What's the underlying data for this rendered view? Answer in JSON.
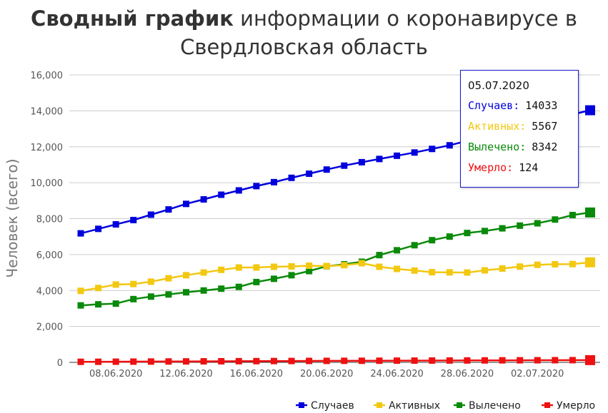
{
  "title": {
    "bold": "Сводный график",
    "rest_line1": " информации о коронавирусе в",
    "line2": "Свердловская область"
  },
  "chart_data": {
    "type": "line",
    "ylabel": "Человек (всего)",
    "xlabel": "",
    "ylim": [
      0,
      16000
    ],
    "yticks": [
      0,
      2000,
      4000,
      6000,
      8000,
      10000,
      12000,
      14000,
      16000
    ],
    "ytick_labels": [
      "0",
      "2,000",
      "4,000",
      "6,000",
      "8,000",
      "10,000",
      "12,000",
      "14,000",
      "16,000"
    ],
    "x": [
      "06.06.2020",
      "07.06.2020",
      "08.06.2020",
      "09.06.2020",
      "10.06.2020",
      "11.06.2020",
      "12.06.2020",
      "13.06.2020",
      "14.06.2020",
      "15.06.2020",
      "16.06.2020",
      "17.06.2020",
      "18.06.2020",
      "19.06.2020",
      "20.06.2020",
      "21.06.2020",
      "22.06.2020",
      "23.06.2020",
      "24.06.2020",
      "25.06.2020",
      "26.06.2020",
      "27.06.2020",
      "28.06.2020",
      "29.06.2020",
      "30.06.2020",
      "01.07.2020",
      "02.07.2020",
      "03.07.2020",
      "04.07.2020",
      "05.07.2020"
    ],
    "xtick_labels": [
      "08.06.2020",
      "12.06.2020",
      "16.06.2020",
      "20.06.2020",
      "24.06.2020",
      "28.06.2020",
      "02.07.2020"
    ],
    "grid": true,
    "legend_position": "bottom-right",
    "series": [
      {
        "name": "Случаев",
        "color": "#0000dd",
        "values": [
          7180,
          7430,
          7680,
          7920,
          8220,
          8510,
          8820,
          9070,
          9330,
          9570,
          9810,
          10030,
          10270,
          10500,
          10730,
          10950,
          11140,
          11320,
          11500,
          11680,
          11880,
          12080,
          12330,
          12580,
          12860,
          13080,
          13300,
          13550,
          13800,
          14033
        ]
      },
      {
        "name": "Активных",
        "color": "#f2c811",
        "values": [
          3980,
          4140,
          4330,
          4360,
          4490,
          4680,
          4850,
          5000,
          5150,
          5280,
          5280,
          5320,
          5340,
          5380,
          5360,
          5410,
          5520,
          5320,
          5200,
          5110,
          5020,
          5010,
          5000,
          5120,
          5220,
          5330,
          5430,
          5460,
          5470,
          5567
        ]
      },
      {
        "name": "Вылечено",
        "color": "#0a8a0a",
        "values": [
          3170,
          3230,
          3270,
          3520,
          3660,
          3780,
          3900,
          4000,
          4100,
          4200,
          4470,
          4650,
          4850,
          5080,
          5350,
          5460,
          5600,
          5970,
          6240,
          6520,
          6800,
          7000,
          7200,
          7310,
          7460,
          7610,
          7740,
          7950,
          8200,
          8342
        ]
      },
      {
        "name": "Умерло",
        "color": "#ee1111",
        "values": [
          30,
          33,
          37,
          41,
          45,
          49,
          53,
          57,
          61,
          65,
          68,
          72,
          75,
          79,
          82,
          85,
          88,
          91,
          94,
          97,
          100,
          103,
          106,
          109,
          112,
          115,
          118,
          120,
          122,
          124
        ]
      }
    ]
  },
  "tooltip": {
    "date": "05.07.2020",
    "rows": [
      {
        "label": "Случаев:",
        "value": "14033",
        "color": "#0000dd"
      },
      {
        "label": "Активных:",
        "value": "5567",
        "color": "#f2c811"
      },
      {
        "label": "Вылечено:",
        "value": "8342",
        "color": "#0a8a0a"
      },
      {
        "label": "Умерло:",
        "value": "124",
        "color": "#ee1111"
      }
    ]
  }
}
